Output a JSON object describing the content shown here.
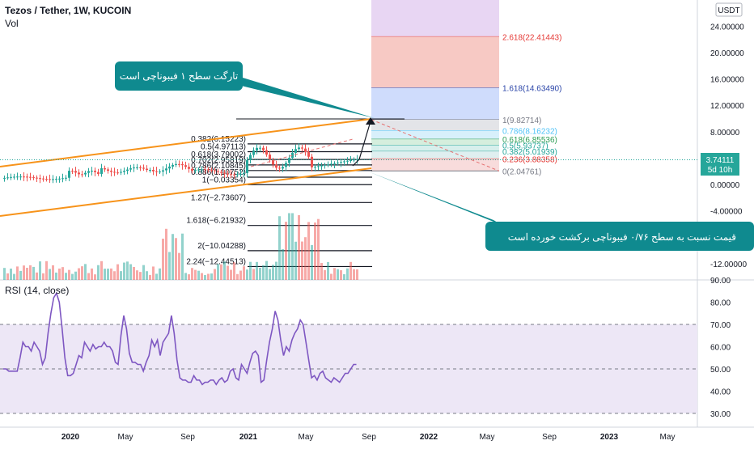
{
  "header": {
    "symbol": "Tezos / Tether, 1W, KUCOIN",
    "volume_label": "Vol"
  },
  "currency_button": "USDT",
  "price_axis": {
    "ticks": [
      {
        "label": "24.00000",
        "value": 24
      },
      {
        "label": "20.00000",
        "value": 20
      },
      {
        "label": "16.00000",
        "value": 16
      },
      {
        "label": "12.00000",
        "value": 12
      },
      {
        "label": "8.00000",
        "value": 8
      },
      {
        "label": "0.00000",
        "value": 0
      },
      {
        "label": "-4.00000",
        "value": -4
      },
      {
        "label": "-8.00000",
        "value": -8
      },
      {
        "label": "-12.00000",
        "value": -12
      }
    ],
    "last_price": "3.74111",
    "countdown": "5d 10h"
  },
  "fib_extension": [
    {
      "label": "2.618(22.41443)",
      "value": 22.41443,
      "color": "#e53935",
      "fill": "#f7c9c4"
    },
    {
      "label": "1.618(14.63490)",
      "value": 14.6349,
      "color": "#2b45a8",
      "fill": "#cfdcfc"
    },
    {
      "label": "1(9.82714)",
      "value": 9.82714,
      "color": "#787b86",
      "fill": "#e3e4e8"
    },
    {
      "label": "0.786(8.16232)",
      "value": 8.16232,
      "color": "#4fc3f7",
      "fill": "#d8f0fb"
    },
    {
      "label": "0.618(6.85536)",
      "value": 6.85536,
      "color": "#2e9e55",
      "fill": "#d5eedd"
    },
    {
      "label": "0.5(5.93737)",
      "value": 5.93737,
      "color": "#26a69a",
      "fill": "#d7efec"
    },
    {
      "label": "0.382(5.01939)",
      "value": 5.01939,
      "color": "#26a69a",
      "fill": "#dfeff0"
    },
    {
      "label": "0.236(3.88358)",
      "value": 3.88358,
      "color": "#e53935",
      "fill": "#f8dcdc"
    },
    {
      "label": "0(2.04761)",
      "value": 2.04761,
      "color": "#787b86",
      "fill": "#ffffff"
    }
  ],
  "fib_retracement": [
    {
      "label": "0.382(6.15223)",
      "value": 6.15223
    },
    {
      "label": "0.5(4.97113)",
      "value": 4.97113
    },
    {
      "label": "0.618(3.79002)",
      "value": 3.79002
    },
    {
      "label": "0.702(2.95819)",
      "value": 2.95819
    },
    {
      "label": "0.786(2.10845)",
      "value": 2.10845
    },
    {
      "label": "0.886(1.10752)",
      "value": 1.10752
    },
    {
      "label": "1(−0.03354)",
      "value": -0.03354
    },
    {
      "label": "1.27(−2.73607)",
      "value": -2.73607
    },
    {
      "label": "1.618(−6.21932)",
      "value": -6.21932
    },
    {
      "label": "2(−10.04288)",
      "value": -10.04288
    },
    {
      "label": "2.24(−12.44513)",
      "value": -12.44513
    }
  ],
  "callouts": {
    "top": "تارگت سطح ۱ فیبوناچی است",
    "bottom": "قیمت نسبت به سطح ۰/۷۶ فیبوناچی برکشت خورده است"
  },
  "rsi": {
    "label": "RSI (14, close)",
    "ticks": [
      {
        "label": "90.00",
        "value": 90
      },
      {
        "label": "80.00",
        "value": 80
      },
      {
        "label": "70.00",
        "value": 70
      },
      {
        "label": "60.00",
        "value": 60
      },
      {
        "label": "50.00",
        "value": 50
      },
      {
        "label": "40.00",
        "value": 40
      },
      {
        "label": "30.00",
        "value": 30
      }
    ],
    "upper_band": 70,
    "middle_band": 50,
    "lower_band": 30,
    "values": [
      50,
      50,
      49,
      49,
      49,
      49,
      55,
      62,
      60,
      60,
      58,
      62,
      60,
      58,
      52,
      55,
      66,
      75,
      82,
      84,
      80,
      68,
      55,
      47,
      47,
      48,
      52,
      56,
      55,
      62,
      60,
      58,
      61,
      59,
      60,
      60,
      62,
      60,
      60,
      58,
      53,
      52,
      65,
      74,
      68,
      57,
      53,
      53,
      52,
      52,
      49,
      53,
      56,
      63,
      60,
      63,
      56,
      62,
      64,
      66,
      74,
      66,
      54,
      46,
      45,
      45,
      44,
      44,
      47,
      45,
      45,
      43,
      44,
      44,
      45,
      45,
      43,
      45,
      46,
      44,
      45,
      49,
      50,
      46,
      45,
      52,
      50,
      48,
      53,
      57,
      58,
      56,
      44,
      45,
      54,
      62,
      68,
      76,
      72,
      63,
      56,
      60,
      58,
      63,
      66,
      68,
      72,
      70,
      62,
      54,
      46,
      47,
      45,
      48,
      49,
      46,
      45,
      44,
      46,
      45,
      44,
      46,
      48,
      48,
      50,
      52,
      52
    ]
  },
  "time_axis": [
    "2020",
    "May",
    "Sep",
    "2021",
    "May",
    "Sep",
    "2022",
    "May",
    "Sep",
    "2023",
    "May"
  ],
  "colors": {
    "up": "#26a69a",
    "down": "#ef5350",
    "channel": "#f7931a",
    "callout_bg": "#0f8a8f",
    "rsi_line": "#7e57c2",
    "rsi_band_fill": "#ede7f6"
  }
}
